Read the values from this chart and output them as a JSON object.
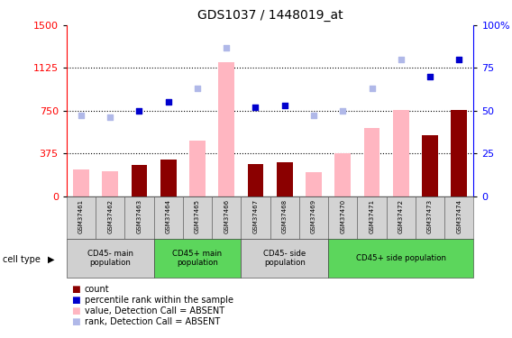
{
  "title": "GDS1037 / 1448019_at",
  "samples": [
    "GSM37461",
    "GSM37462",
    "GSM37463",
    "GSM37464",
    "GSM37465",
    "GSM37466",
    "GSM37467",
    "GSM37468",
    "GSM37469",
    "GSM37470",
    "GSM37471",
    "GSM37472",
    "GSM37473",
    "GSM37474"
  ],
  "count_vals": [
    null,
    null,
    270,
    320,
    null,
    null,
    280,
    295,
    null,
    null,
    null,
    null,
    535,
    755
  ],
  "value_absent": [
    235,
    215,
    null,
    null,
    490,
    1180,
    null,
    null,
    210,
    375,
    595,
    755,
    null,
    null
  ],
  "percentile_rank": [
    null,
    null,
    50,
    55,
    null,
    null,
    52,
    53,
    null,
    null,
    null,
    null,
    70,
    80
  ],
  "rank_absent": [
    47,
    46,
    null,
    null,
    63,
    87,
    null,
    null,
    47,
    50,
    63,
    80,
    null,
    null
  ],
  "groups": [
    {
      "label": "CD45- main\npopulation",
      "start": 0,
      "end": 3,
      "color": "#d0d0d0"
    },
    {
      "label": "CD45+ main\npopulation",
      "start": 3,
      "end": 6,
      "color": "#5cd65c"
    },
    {
      "label": "CD45- side\npopulation",
      "start": 6,
      "end": 9,
      "color": "#d0d0d0"
    },
    {
      "label": "CD45+ side population",
      "start": 9,
      "end": 14,
      "color": "#5cd65c"
    }
  ],
  "ylim_left": [
    0,
    1500
  ],
  "ylim_right": [
    0,
    100
  ],
  "yticks_left": [
    0,
    375,
    750,
    1125,
    1500
  ],
  "yticks_right": [
    0,
    25,
    50,
    75,
    100
  ],
  "color_count": "#8b0000",
  "color_percentile": "#0000cd",
  "color_value_absent": "#ffb6c1",
  "color_rank_absent": "#b0b8e8",
  "legend_items": [
    {
      "label": "count",
      "color": "#8b0000"
    },
    {
      "label": "percentile rank within the sample",
      "color": "#0000cd"
    },
    {
      "label": "value, Detection Call = ABSENT",
      "color": "#ffb6c1"
    },
    {
      "label": "rank, Detection Call = ABSENT",
      "color": "#b0b8e8"
    }
  ]
}
